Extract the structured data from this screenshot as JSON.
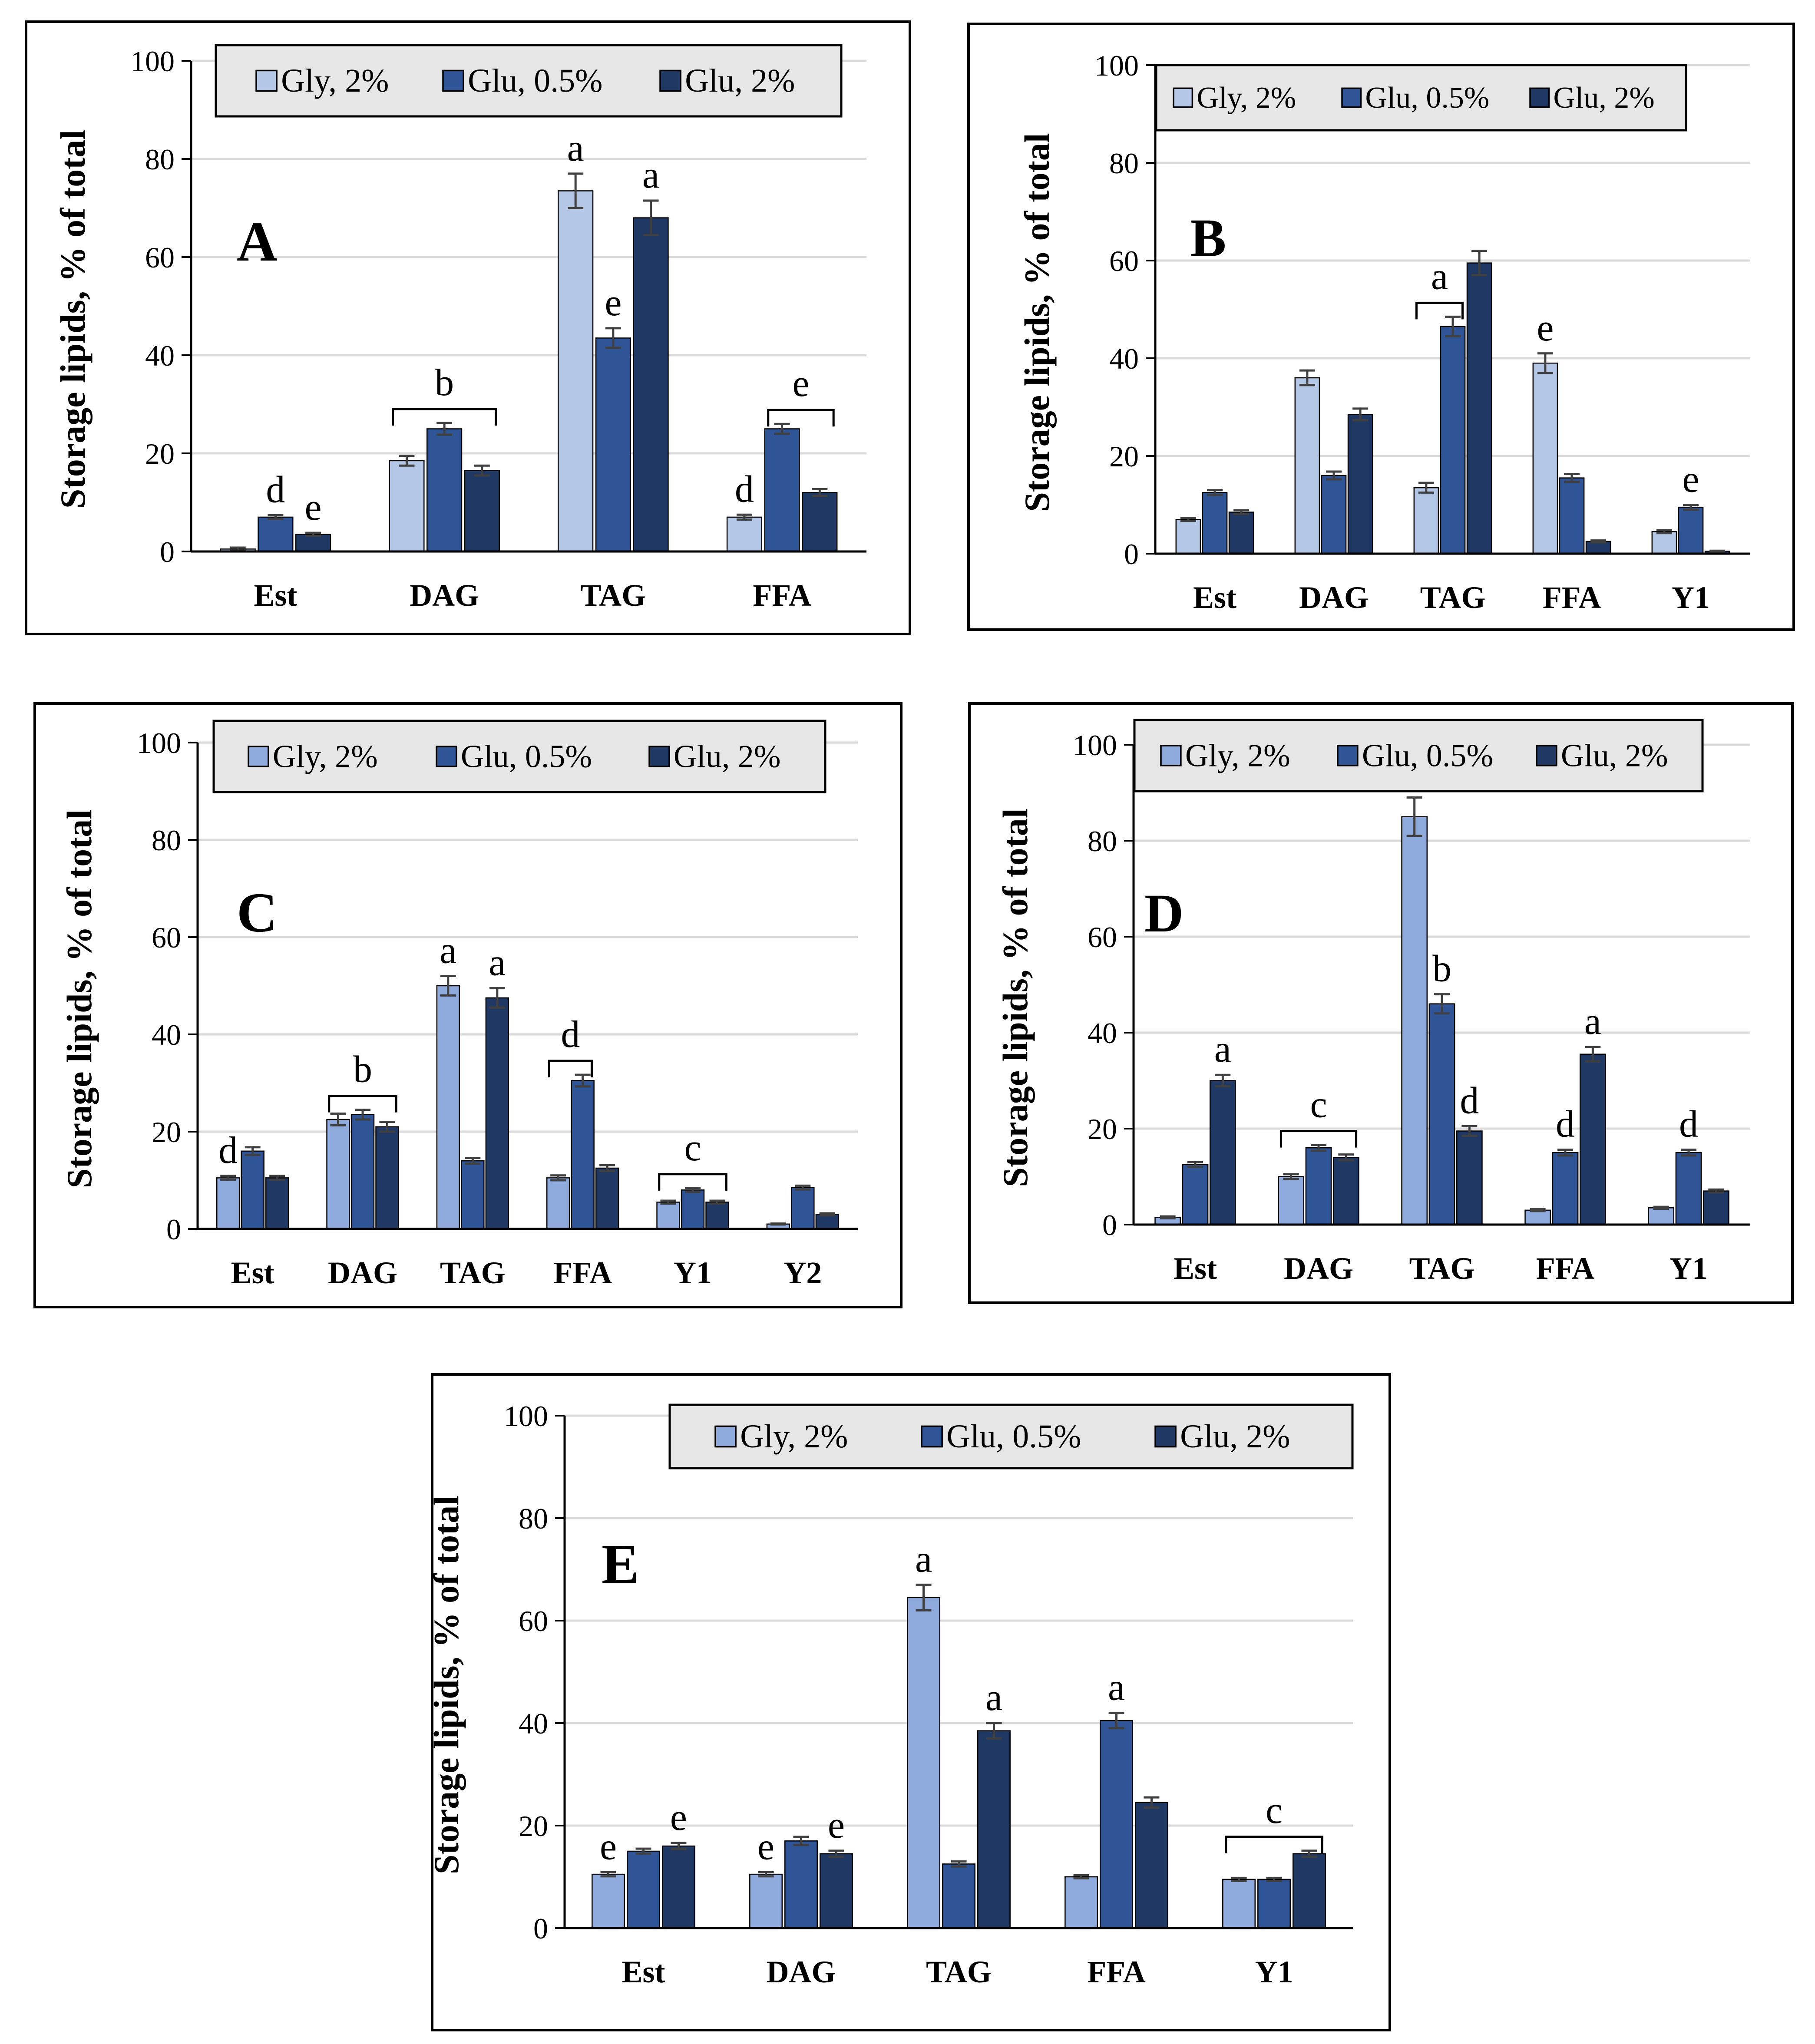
{
  "figure": {
    "legend_labels": [
      "Gly, 2%",
      "Glu, 0.5%",
      "Glu, 2%"
    ],
    "ylabel": "Storage lipids, % of total",
    "ytick_labels": [
      "0",
      "20",
      "40",
      "60",
      "80",
      "100"
    ]
  },
  "colors": {
    "series": [
      "#b4c7e7",
      "#2f5597",
      "#203864"
    ],
    "series_panel_CDE": [
      "#8faadc",
      "#2f5597",
      "#203864"
    ],
    "gridline": "#d9d9d9",
    "legend_bg": "#e7e6e6",
    "error_bar": "#404040"
  },
  "chart_data": [
    {
      "panel": "A",
      "title": "A",
      "type": "bar",
      "ylim": [
        0,
        100
      ],
      "grid": true,
      "legend_position": "top",
      "ylabel": "Storage lipids, % of total",
      "categories": [
        "Est",
        "DAG",
        "TAG",
        "FFA"
      ],
      "series": [
        {
          "name": "Gly, 2%",
          "values": [
            0.5,
            18.5,
            73.5,
            7
          ],
          "errors": [
            0.3,
            1,
            3.5,
            0.5
          ]
        },
        {
          "name": "Glu, 0.5%",
          "values": [
            7,
            25,
            43.5,
            25
          ],
          "errors": [
            0.4,
            1.2,
            2,
            1
          ]
        },
        {
          "name": "Glu, 2%",
          "values": [
            3.5,
            16.5,
            68,
            12
          ],
          "errors": [
            0.3,
            1,
            3.5,
            0.7
          ]
        }
      ],
      "annotations": [
        {
          "text": "d",
          "category": "Est",
          "series": 1
        },
        {
          "text": "e",
          "category": "Est",
          "series": 2
        },
        {
          "text": "b",
          "category": "DAG",
          "bracket": [
            0,
            2
          ]
        },
        {
          "text": "a",
          "category": "TAG",
          "series": 0
        },
        {
          "text": "e",
          "category": "TAG",
          "series": 1
        },
        {
          "text": "a",
          "category": "TAG",
          "series": 2
        },
        {
          "text": "d",
          "category": "FFA",
          "series": 0
        },
        {
          "text": "e",
          "category": "FFA",
          "bracket": [
            1,
            2
          ]
        }
      ]
    },
    {
      "panel": "B",
      "title": "B",
      "type": "bar",
      "ylim": [
        0,
        100
      ],
      "grid": true,
      "legend_position": "top",
      "ylabel": "Storage lipids, % of total",
      "categories": [
        "Est",
        "DAG",
        "TAG",
        "FFA",
        "Y1"
      ],
      "series": [
        {
          "name": "Gly, 2%",
          "values": [
            7,
            36,
            13.5,
            39,
            4.5
          ],
          "errors": [
            0.3,
            1.5,
            1,
            2,
            0.3
          ]
        },
        {
          "name": "Glu, 0.5%",
          "values": [
            12.5,
            16,
            46.5,
            15.5,
            9.5
          ],
          "errors": [
            0.5,
            0.8,
            2,
            0.8,
            0.5
          ]
        },
        {
          "name": "Glu, 2%",
          "values": [
            8.5,
            28.5,
            59.5,
            2.5,
            0.5
          ],
          "errors": [
            0.4,
            1.2,
            2.5,
            0.2,
            0.1
          ]
        }
      ],
      "annotations": [
        {
          "text": "a",
          "category": "TAG",
          "bracket": [
            0,
            1
          ]
        },
        {
          "text": "e",
          "category": "FFA",
          "series": 0
        },
        {
          "text": "e",
          "category": "Y1",
          "series": 1
        }
      ]
    },
    {
      "panel": "C",
      "title": "C",
      "type": "bar",
      "ylim": [
        0,
        100
      ],
      "grid": true,
      "legend_position": "top",
      "ylabel": "Storage lipids, % of total",
      "categories": [
        "Est",
        "DAG",
        "TAG",
        "FFA",
        "Y1",
        "Y2"
      ],
      "series": [
        {
          "name": "Gly, 2%",
          "values": [
            10.5,
            22.5,
            50,
            10.5,
            5.5,
            1
          ],
          "errors": [
            0.4,
            1.2,
            2,
            0.5,
            0.3,
            0.1
          ]
        },
        {
          "name": "Glu, 0.5%",
          "values": [
            16,
            23.5,
            14,
            30.5,
            8,
            8.5
          ],
          "errors": [
            0.8,
            1,
            0.6,
            1.2,
            0.4,
            0.4
          ]
        },
        {
          "name": "Glu, 2%",
          "values": [
            10.5,
            21,
            47.5,
            12.5,
            5.5,
            3
          ],
          "errors": [
            0.4,
            1,
            2,
            0.6,
            0.3,
            0.2
          ]
        }
      ],
      "annotations": [
        {
          "text": "d",
          "category": "Est",
          "series": 0
        },
        {
          "text": "b",
          "category": "DAG",
          "bracket": [
            0,
            2
          ]
        },
        {
          "text": "a",
          "category": "TAG",
          "series": 0
        },
        {
          "text": "a",
          "category": "TAG",
          "series": 2
        },
        {
          "text": "d",
          "category": "FFA",
          "bracket": [
            0,
            1
          ]
        },
        {
          "text": "c",
          "category": "Y1",
          "bracket": [
            0,
            2
          ]
        }
      ]
    },
    {
      "panel": "D",
      "title": "D",
      "type": "bar",
      "ylim": [
        0,
        100
      ],
      "grid": true,
      "legend_position": "top",
      "ylabel": "Storage lipids, % of total",
      "categories": [
        "Est",
        "DAG",
        "TAG",
        "FFA",
        "Y1"
      ],
      "series": [
        {
          "name": "Gly, 2%",
          "values": [
            1.5,
            10,
            85,
            3,
            3.5
          ],
          "errors": [
            0.2,
            0.5,
            4,
            0.2,
            0.2
          ]
        },
        {
          "name": "Glu, 0.5%",
          "values": [
            12.5,
            16,
            46,
            15,
            15
          ],
          "errors": [
            0.5,
            0.6,
            2,
            0.6,
            0.6
          ]
        },
        {
          "name": "Glu, 2%",
          "values": [
            30,
            14,
            19.5,
            35.5,
            7
          ],
          "errors": [
            1.2,
            0.6,
            1,
            1.5,
            0.3
          ]
        }
      ],
      "annotations": [
        {
          "text": "a",
          "category": "Est",
          "series": 2
        },
        {
          "text": "c",
          "category": "DAG",
          "bracket": [
            0,
            2
          ]
        },
        {
          "text": "b",
          "category": "TAG",
          "series": 1
        },
        {
          "text": "d",
          "category": "TAG",
          "series": 2
        },
        {
          "text": "d",
          "category": "FFA",
          "series": 1
        },
        {
          "text": "a",
          "category": "FFA",
          "series": 2
        },
        {
          "text": "d",
          "category": "Y1",
          "series": 1
        }
      ]
    },
    {
      "panel": "E",
      "title": "E",
      "type": "bar",
      "ylim": [
        0,
        100
      ],
      "grid": true,
      "legend_position": "top",
      "ylabel": "Storage lipids, % of total",
      "categories": [
        "Est",
        "DAG",
        "TAG",
        "FFA",
        "Y1"
      ],
      "series": [
        {
          "name": "Gly, 2%",
          "values": [
            10.5,
            10.5,
            64.5,
            10,
            9.5
          ],
          "errors": [
            0.4,
            0.4,
            2.5,
            0.3,
            0.3
          ]
        },
        {
          "name": "Glu, 0.5%",
          "values": [
            15,
            17,
            12.5,
            40.5,
            9.5
          ],
          "errors": [
            0.5,
            0.8,
            0.5,
            1.5,
            0.3
          ]
        },
        {
          "name": "Glu, 2%",
          "values": [
            16,
            14.5,
            38.5,
            24.5,
            14.5
          ],
          "errors": [
            0.6,
            0.6,
            1.5,
            1,
            0.6
          ]
        }
      ],
      "annotations": [
        {
          "text": "e",
          "category": "Est",
          "series": 0
        },
        {
          "text": "e",
          "category": "Est",
          "series": 2
        },
        {
          "text": "e",
          "category": "DAG",
          "series": 0
        },
        {
          "text": "e",
          "category": "DAG",
          "series": 2
        },
        {
          "text": "a",
          "category": "TAG",
          "series": 0
        },
        {
          "text": "a",
          "category": "TAG",
          "series": 2
        },
        {
          "text": "a",
          "category": "FFA",
          "series": 1
        },
        {
          "text": "c",
          "category": "Y1",
          "bracket": [
            0,
            2
          ]
        }
      ]
    }
  ]
}
